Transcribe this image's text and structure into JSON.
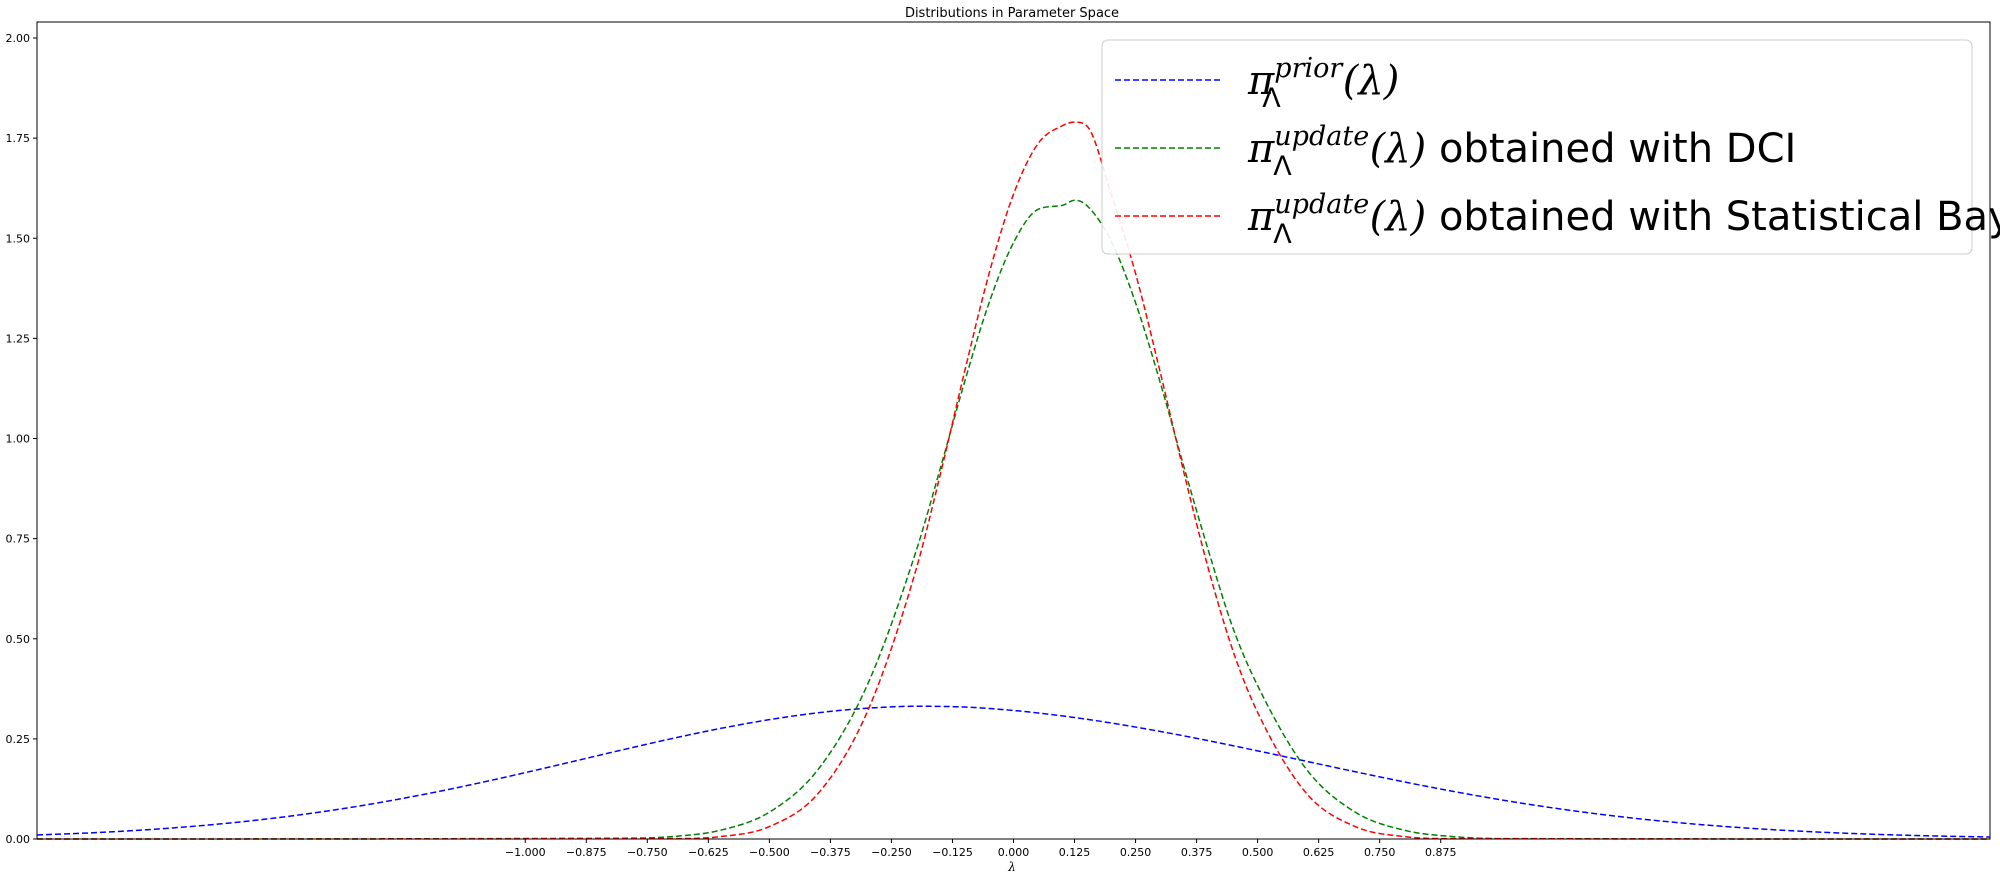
{
  "chart_data": {
    "type": "line",
    "title": "Distributions in Parameter Space",
    "xlabel": "λ",
    "ylabel": "",
    "xlim": [
      -2.0,
      2.0
    ],
    "ylim": [
      0.0,
      2.04
    ],
    "x_ticks": [
      -1.0,
      -0.875,
      -0.75,
      -0.625,
      -0.5,
      -0.375,
      -0.25,
      -0.125,
      0.0,
      0.125,
      0.25,
      0.375,
      0.5,
      0.625,
      0.75,
      0.875
    ],
    "x_tick_labels": [
      "−1.000",
      "−0.875",
      "−0.750",
      "−0.625",
      "−0.500",
      "−0.375",
      "−0.250",
      "−0.125",
      "0.000",
      "0.125",
      "0.250",
      "0.375",
      "0.500",
      "0.625",
      "0.750",
      "0.875"
    ],
    "y_ticks": [
      0.0,
      0.25,
      0.5,
      0.75,
      1.0,
      1.25,
      1.5,
      1.75,
      2.0
    ],
    "y_tick_labels": [
      "0.00",
      "0.25",
      "0.50",
      "0.75",
      "1.00",
      "1.25",
      "1.50",
      "1.75",
      "2.00"
    ],
    "grid": false,
    "legend_position": "top-right",
    "series": [
      {
        "color": "#0000ff",
        "dashed": true,
        "legend": {
          "symbol": "π",
          "sup": "prior",
          "sub": "Λ",
          "arg": "(λ)",
          "text": ""
        },
        "x": [
          -2.0,
          -1.9,
          -1.8,
          -1.7,
          -1.6,
          -1.5,
          -1.4,
          -1.3,
          -1.2,
          -1.1,
          -1.0,
          -0.9,
          -0.8,
          -0.7,
          -0.6,
          -0.5,
          -0.4,
          -0.3,
          -0.2,
          -0.1,
          0.0,
          0.05,
          0.1,
          0.15,
          0.2,
          0.3,
          0.4,
          0.5,
          0.6,
          0.7,
          0.8,
          0.9,
          1.0,
          1.1,
          1.2,
          1.3,
          1.4,
          1.5,
          1.6,
          1.7,
          1.8,
          1.9,
          2.0
        ],
        "y": [
          0.0101,
          0.0148,
          0.0212,
          0.0297,
          0.0406,
          0.0543,
          0.0709,
          0.0906,
          0.1132,
          0.1384,
          0.1657,
          0.1942,
          0.2229,
          0.2506,
          0.2761,
          0.298,
          0.3152,
          0.3265,
          0.3314,
          0.3295,
          0.3209,
          0.3147,
          0.3073,
          0.299,
          0.2897,
          0.2687,
          0.2453,
          0.2201,
          0.194,
          0.1679,
          0.1426,
          0.119,
          0.0975,
          0.0785,
          0.062,
          0.0481,
          0.0367,
          0.0275,
          0.0202,
          0.0146,
          0.0103,
          0.0072,
          0.0049
        ]
      },
      {
        "color": "#008000",
        "dashed": true,
        "legend": {
          "symbol": "π",
          "sup": "update",
          "sub": "Λ",
          "arg": "(λ)",
          "text": " obtained with DCI"
        },
        "x": [
          -2.0,
          -0.8,
          -0.7,
          -0.6,
          -0.5,
          -0.4,
          -0.3,
          -0.2,
          -0.15,
          -0.1,
          -0.05,
          0.0,
          0.05,
          0.1,
          0.125,
          0.15,
          0.2,
          0.25,
          0.3,
          0.35,
          0.4,
          0.45,
          0.5,
          0.6,
          0.7,
          0.8,
          0.9,
          1.0,
          2.0
        ],
        "y": [
          0.0,
          0.002,
          0.006,
          0.022,
          0.067,
          0.174,
          0.383,
          0.717,
          0.925,
          1.142,
          1.339,
          1.489,
          1.572,
          1.582,
          1.595,
          1.582,
          1.493,
          1.339,
          1.142,
          0.925,
          0.717,
          0.525,
          0.383,
          0.174,
          0.067,
          0.022,
          0.006,
          0.001,
          0.0
        ]
      },
      {
        "color": "#ff0000",
        "dashed": true,
        "legend": {
          "symbol": "π",
          "sup": "update",
          "sub": "Λ",
          "arg": "(λ)",
          "text": " obtained with Statistical Bayes"
        },
        "x": [
          -2.0,
          -0.7,
          -0.6,
          -0.5,
          -0.4,
          -0.3,
          -0.2,
          -0.15,
          -0.1,
          -0.05,
          0.0,
          0.05,
          0.1,
          0.125,
          0.15,
          0.2,
          0.25,
          0.3,
          0.35,
          0.4,
          0.45,
          0.5,
          0.6,
          0.7,
          0.8,
          0.9,
          2.0
        ],
        "y": [
          0.0,
          0.001,
          0.006,
          0.031,
          0.114,
          0.316,
          0.671,
          0.91,
          1.168,
          1.412,
          1.61,
          1.736,
          1.781,
          1.79,
          1.781,
          1.61,
          1.412,
          1.168,
          0.91,
          0.671,
          0.468,
          0.316,
          0.114,
          0.031,
          0.006,
          0.001,
          0.0
        ]
      }
    ]
  }
}
